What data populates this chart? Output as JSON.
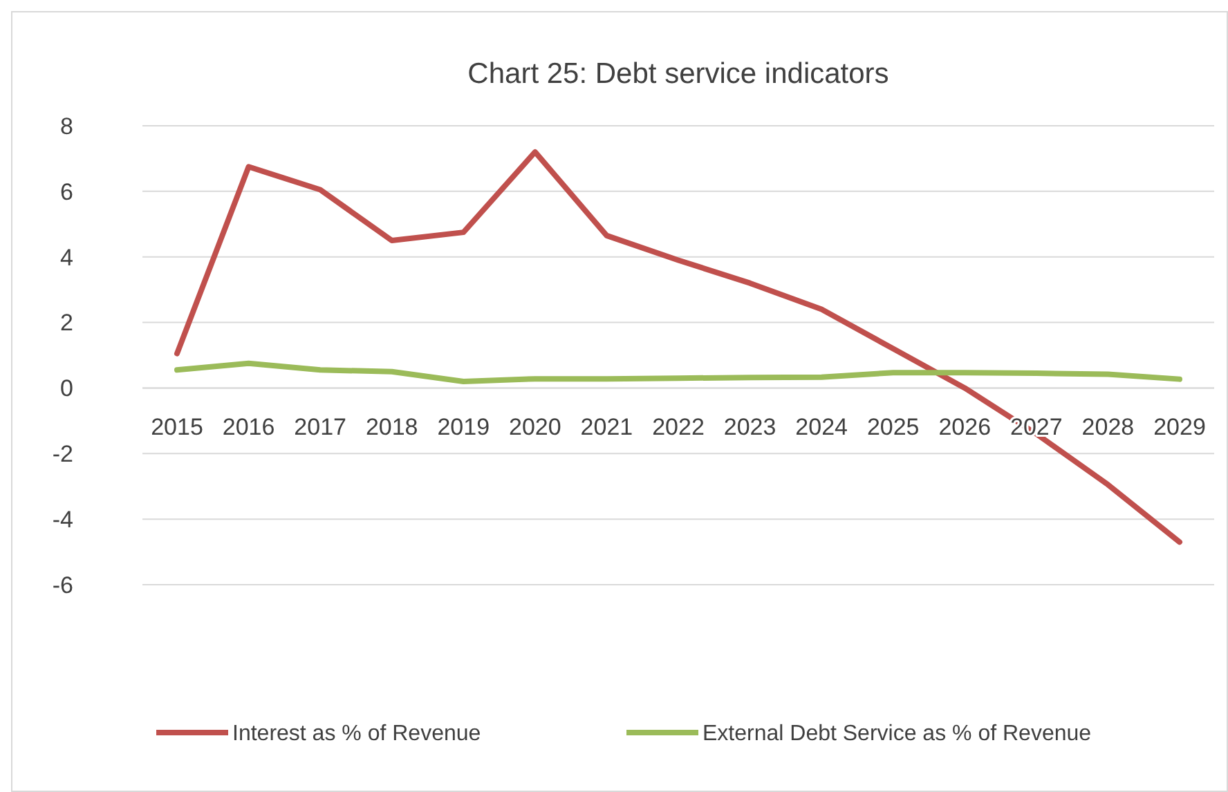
{
  "chart_data": {
    "type": "line",
    "title": "Chart 25: Debt service indicators",
    "categories": [
      "2015",
      "2016",
      "2017",
      "2018",
      "2019",
      "2020",
      "2021",
      "2022",
      "2023",
      "2024",
      "2025",
      "2026",
      "2027",
      "2028",
      "2029"
    ],
    "series": [
      {
        "name": "Interest as % of Revenue",
        "color": "#c0504d",
        "values": [
          1.05,
          6.75,
          6.05,
          4.5,
          4.75,
          7.2,
          4.65,
          3.9,
          3.2,
          2.4,
          1.2,
          0.0,
          -1.4,
          -2.95,
          -4.7
        ]
      },
      {
        "name": "External Debt Service as % of Revenue",
        "color": "#9bbb59",
        "values": [
          0.55,
          0.75,
          0.55,
          0.5,
          0.2,
          0.28,
          0.28,
          0.3,
          0.32,
          0.33,
          0.47,
          0.47,
          0.45,
          0.42,
          0.27
        ]
      }
    ],
    "ylim": [
      -6,
      8
    ],
    "yticks": [
      -6,
      -4,
      -2,
      0,
      2,
      4,
      6,
      8
    ],
    "grid": "y",
    "legend": "bottom",
    "marker": "none",
    "line_style": "solid"
  }
}
